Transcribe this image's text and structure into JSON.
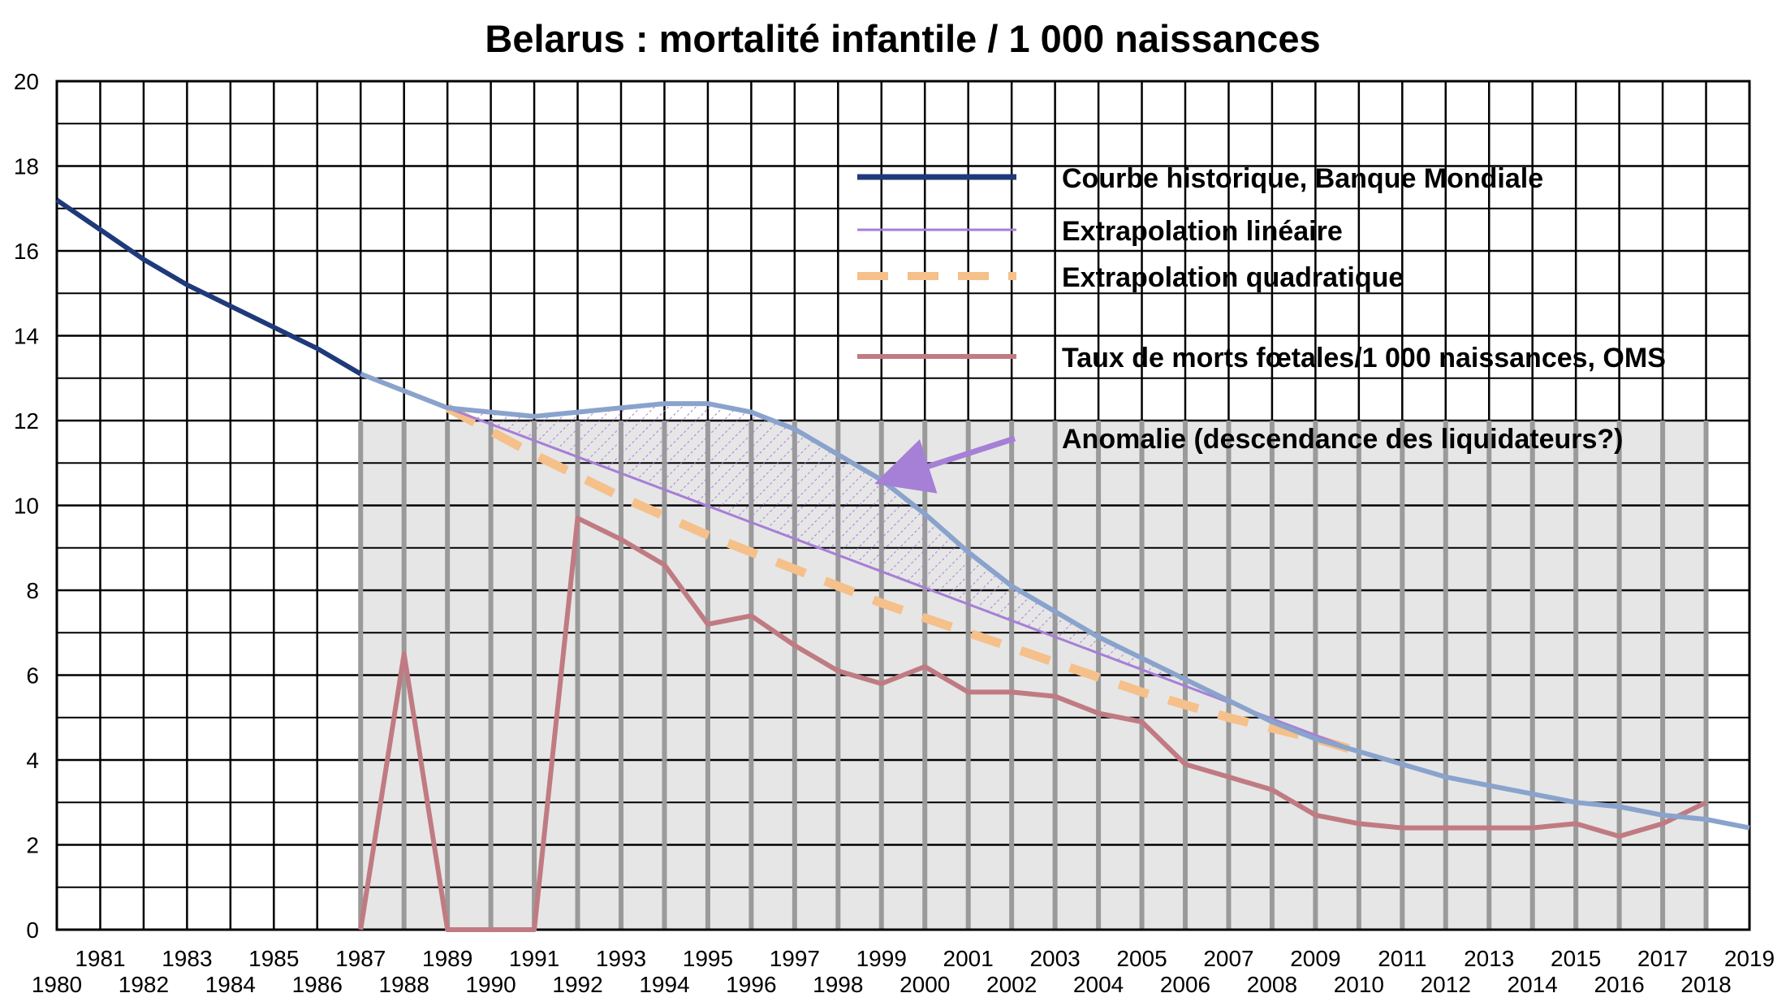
{
  "chart_data": {
    "type": "line",
    "title": "Belarus : mortalité infantile / 1 000 naissances",
    "xlabel": "",
    "ylabel": "",
    "xlim": [
      1980,
      2019
    ],
    "ylim": [
      0,
      20
    ],
    "yticks": [
      0,
      2,
      4,
      6,
      8,
      10,
      12,
      14,
      16,
      18,
      20
    ],
    "xticks": [
      1980,
      1981,
      1982,
      1983,
      1984,
      1985,
      1986,
      1987,
      1988,
      1989,
      1990,
      1991,
      1992,
      1993,
      1994,
      1995,
      1996,
      1997,
      1998,
      1999,
      2000,
      2001,
      2002,
      2003,
      2004,
      2005,
      2006,
      2007,
      2008,
      2009,
      2010,
      2011,
      2012,
      2013,
      2014,
      2015,
      2016,
      2017,
      2018,
      2019
    ],
    "grid": true,
    "legend_position": "top-right",
    "series": [
      {
        "name": "Courbe historique, Banque Mondiale",
        "color": "#1f3a7a",
        "color_after_1987": "#8aa3cc",
        "style": "solid-thick",
        "x": [
          1980,
          1981,
          1982,
          1983,
          1984,
          1985,
          1986,
          1987,
          1988,
          1989,
          1990,
          1991,
          1992,
          1993,
          1994,
          1995,
          1996,
          1997,
          1998,
          1999,
          2000,
          2001,
          2002,
          2003,
          2004,
          2005,
          2006,
          2007,
          2008,
          2009,
          2010,
          2011,
          2012,
          2013,
          2014,
          2015,
          2016,
          2017,
          2018,
          2019
        ],
        "y": [
          17.2,
          16.5,
          15.8,
          15.2,
          14.7,
          14.2,
          13.7,
          13.1,
          12.7,
          12.3,
          12.2,
          12.1,
          12.2,
          12.3,
          12.4,
          12.4,
          12.2,
          11.8,
          11.2,
          10.6,
          9.8,
          8.9,
          8.1,
          7.5,
          6.9,
          6.4,
          5.9,
          5.4,
          4.9,
          4.5,
          4.2,
          3.9,
          3.6,
          3.4,
          3.2,
          3.0,
          2.9,
          2.7,
          2.6,
          2.4
        ]
      },
      {
        "name": "Extrapolation linéaire",
        "color": "#a67fd6",
        "style": "solid-thin",
        "x": [
          1989,
          2010
        ],
        "y": [
          12.3,
          4.2
        ]
      },
      {
        "name": "Extrapolation quadratique",
        "color": "#f5c08a",
        "style": "dashed-thick",
        "x": [
          1989,
          1991,
          1993,
          1995,
          1997,
          1999,
          2001,
          2003,
          2005,
          2007,
          2009,
          2010
        ],
        "y": [
          12.3,
          11.2,
          10.2,
          9.3,
          8.5,
          7.7,
          7.0,
          6.3,
          5.6,
          5.0,
          4.5,
          4.2
        ]
      },
      {
        "name": "Taux de morts fœtales/1 000 naissances, OMS",
        "color": "#c07b82",
        "style": "solid",
        "x": [
          1987,
          1988,
          1989,
          1990,
          1991,
          1992,
          1993,
          1994,
          1995,
          1996,
          1997,
          1998,
          1999,
          2000,
          2001,
          2002,
          2003,
          2004,
          2005,
          2006,
          2007,
          2008,
          2009,
          2010,
          2011,
          2012,
          2013,
          2014,
          2015,
          2016,
          2017,
          2018
        ],
        "y": [
          0,
          6.5,
          0,
          0,
          0,
          9.7,
          9.2,
          8.6,
          7.2,
          7.4,
          6.7,
          6.1,
          5.8,
          6.2,
          5.6,
          5.6,
          5.5,
          5.1,
          4.9,
          3.9,
          3.6,
          3.3,
          2.7,
          2.5,
          2.4,
          2.4,
          2.4,
          2.4,
          2.5,
          2.2,
          2.5,
          3.0
        ]
      }
    ],
    "anomaly": {
      "label": "Anomalie (descendance des liquidateurs?)",
      "color": "#a67fd6",
      "x_range": [
        1989,
        2010
      ],
      "arrow_target": [
        1999,
        10.6
      ]
    },
    "highlight_region_x": [
      1987,
      2018
    ]
  }
}
